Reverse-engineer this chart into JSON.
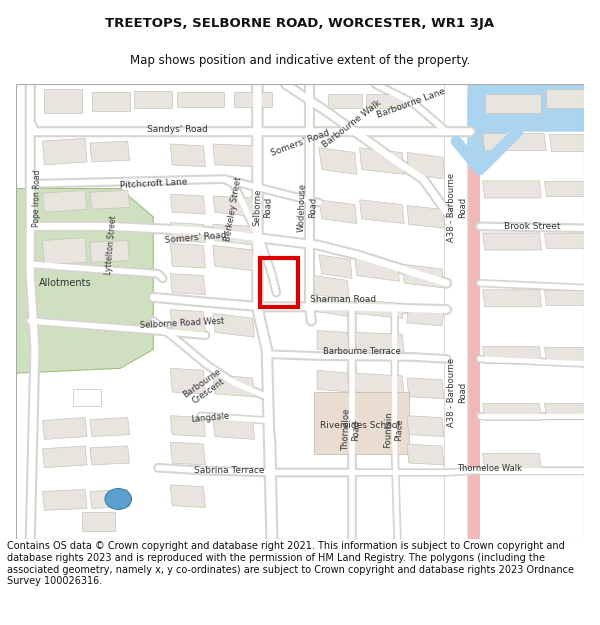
{
  "title_line1": "TREETOPS, SELBORNE ROAD, WORCESTER, WR1 3JA",
  "title_line2": "Map shows position and indicative extent of the property.",
  "footer_text": "Contains OS data © Crown copyright and database right 2021. This information is subject to Crown copyright and database rights 2023 and is reproduced with the permission of HM Land Registry. The polygons (including the associated geometry, namely x, y co-ordinates) are subject to Crown copyright and database rights 2023 Ordnance Survey 100026316.",
  "bg_color": "#ffffff",
  "map_bg": "#f2f0ed",
  "title_fontsize": 9.5,
  "subtitle_fontsize": 8.5,
  "footer_fontsize": 7.0,
  "red_rect_color": "#dd0000",
  "building_color": "#e8e4de",
  "building_outline": "#c8c4be",
  "green_color": "#cfe0c0",
  "a38_pink": "#f0b8b8",
  "water_blue": "#aad4f0",
  "road_white": "#ffffff",
  "road_gray": "#d8d4ce"
}
